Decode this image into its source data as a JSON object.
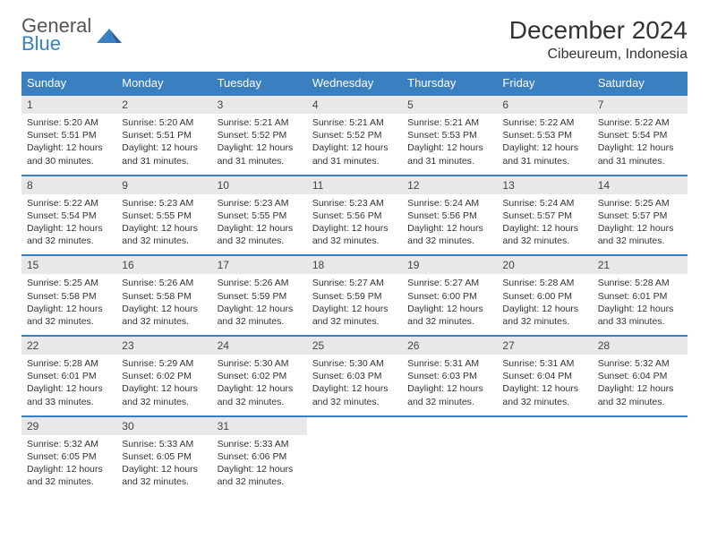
{
  "brand": {
    "line1": "General",
    "line2": "Blue",
    "icon_color": "#3a7fbf"
  },
  "header": {
    "title": "December 2024",
    "location": "Cibeureum, Indonesia"
  },
  "colors": {
    "header_bg": "#3a7fbf",
    "daynum_bg": "#e8e8e8",
    "border": "#3a7fbf",
    "text": "#333333"
  },
  "day_names": [
    "Sunday",
    "Monday",
    "Tuesday",
    "Wednesday",
    "Thursday",
    "Friday",
    "Saturday"
  ],
  "weeks": [
    [
      {
        "num": "1",
        "sunrise": "Sunrise: 5:20 AM",
        "sunset": "Sunset: 5:51 PM",
        "day1": "Daylight: 12 hours",
        "day2": "and 30 minutes."
      },
      {
        "num": "2",
        "sunrise": "Sunrise: 5:20 AM",
        "sunset": "Sunset: 5:51 PM",
        "day1": "Daylight: 12 hours",
        "day2": "and 31 minutes."
      },
      {
        "num": "3",
        "sunrise": "Sunrise: 5:21 AM",
        "sunset": "Sunset: 5:52 PM",
        "day1": "Daylight: 12 hours",
        "day2": "and 31 minutes."
      },
      {
        "num": "4",
        "sunrise": "Sunrise: 5:21 AM",
        "sunset": "Sunset: 5:52 PM",
        "day1": "Daylight: 12 hours",
        "day2": "and 31 minutes."
      },
      {
        "num": "5",
        "sunrise": "Sunrise: 5:21 AM",
        "sunset": "Sunset: 5:53 PM",
        "day1": "Daylight: 12 hours",
        "day2": "and 31 minutes."
      },
      {
        "num": "6",
        "sunrise": "Sunrise: 5:22 AM",
        "sunset": "Sunset: 5:53 PM",
        "day1": "Daylight: 12 hours",
        "day2": "and 31 minutes."
      },
      {
        "num": "7",
        "sunrise": "Sunrise: 5:22 AM",
        "sunset": "Sunset: 5:54 PM",
        "day1": "Daylight: 12 hours",
        "day2": "and 31 minutes."
      }
    ],
    [
      {
        "num": "8",
        "sunrise": "Sunrise: 5:22 AM",
        "sunset": "Sunset: 5:54 PM",
        "day1": "Daylight: 12 hours",
        "day2": "and 32 minutes."
      },
      {
        "num": "9",
        "sunrise": "Sunrise: 5:23 AM",
        "sunset": "Sunset: 5:55 PM",
        "day1": "Daylight: 12 hours",
        "day2": "and 32 minutes."
      },
      {
        "num": "10",
        "sunrise": "Sunrise: 5:23 AM",
        "sunset": "Sunset: 5:55 PM",
        "day1": "Daylight: 12 hours",
        "day2": "and 32 minutes."
      },
      {
        "num": "11",
        "sunrise": "Sunrise: 5:23 AM",
        "sunset": "Sunset: 5:56 PM",
        "day1": "Daylight: 12 hours",
        "day2": "and 32 minutes."
      },
      {
        "num": "12",
        "sunrise": "Sunrise: 5:24 AM",
        "sunset": "Sunset: 5:56 PM",
        "day1": "Daylight: 12 hours",
        "day2": "and 32 minutes."
      },
      {
        "num": "13",
        "sunrise": "Sunrise: 5:24 AM",
        "sunset": "Sunset: 5:57 PM",
        "day1": "Daylight: 12 hours",
        "day2": "and 32 minutes."
      },
      {
        "num": "14",
        "sunrise": "Sunrise: 5:25 AM",
        "sunset": "Sunset: 5:57 PM",
        "day1": "Daylight: 12 hours",
        "day2": "and 32 minutes."
      }
    ],
    [
      {
        "num": "15",
        "sunrise": "Sunrise: 5:25 AM",
        "sunset": "Sunset: 5:58 PM",
        "day1": "Daylight: 12 hours",
        "day2": "and 32 minutes."
      },
      {
        "num": "16",
        "sunrise": "Sunrise: 5:26 AM",
        "sunset": "Sunset: 5:58 PM",
        "day1": "Daylight: 12 hours",
        "day2": "and 32 minutes."
      },
      {
        "num": "17",
        "sunrise": "Sunrise: 5:26 AM",
        "sunset": "Sunset: 5:59 PM",
        "day1": "Daylight: 12 hours",
        "day2": "and 32 minutes."
      },
      {
        "num": "18",
        "sunrise": "Sunrise: 5:27 AM",
        "sunset": "Sunset: 5:59 PM",
        "day1": "Daylight: 12 hours",
        "day2": "and 32 minutes."
      },
      {
        "num": "19",
        "sunrise": "Sunrise: 5:27 AM",
        "sunset": "Sunset: 6:00 PM",
        "day1": "Daylight: 12 hours",
        "day2": "and 32 minutes."
      },
      {
        "num": "20",
        "sunrise": "Sunrise: 5:28 AM",
        "sunset": "Sunset: 6:00 PM",
        "day1": "Daylight: 12 hours",
        "day2": "and 32 minutes."
      },
      {
        "num": "21",
        "sunrise": "Sunrise: 5:28 AM",
        "sunset": "Sunset: 6:01 PM",
        "day1": "Daylight: 12 hours",
        "day2": "and 33 minutes."
      }
    ],
    [
      {
        "num": "22",
        "sunrise": "Sunrise: 5:28 AM",
        "sunset": "Sunset: 6:01 PM",
        "day1": "Daylight: 12 hours",
        "day2": "and 33 minutes."
      },
      {
        "num": "23",
        "sunrise": "Sunrise: 5:29 AM",
        "sunset": "Sunset: 6:02 PM",
        "day1": "Daylight: 12 hours",
        "day2": "and 32 minutes."
      },
      {
        "num": "24",
        "sunrise": "Sunrise: 5:30 AM",
        "sunset": "Sunset: 6:02 PM",
        "day1": "Daylight: 12 hours",
        "day2": "and 32 minutes."
      },
      {
        "num": "25",
        "sunrise": "Sunrise: 5:30 AM",
        "sunset": "Sunset: 6:03 PM",
        "day1": "Daylight: 12 hours",
        "day2": "and 32 minutes."
      },
      {
        "num": "26",
        "sunrise": "Sunrise: 5:31 AM",
        "sunset": "Sunset: 6:03 PM",
        "day1": "Daylight: 12 hours",
        "day2": "and 32 minutes."
      },
      {
        "num": "27",
        "sunrise": "Sunrise: 5:31 AM",
        "sunset": "Sunset: 6:04 PM",
        "day1": "Daylight: 12 hours",
        "day2": "and 32 minutes."
      },
      {
        "num": "28",
        "sunrise": "Sunrise: 5:32 AM",
        "sunset": "Sunset: 6:04 PM",
        "day1": "Daylight: 12 hours",
        "day2": "and 32 minutes."
      }
    ],
    [
      {
        "num": "29",
        "sunrise": "Sunrise: 5:32 AM",
        "sunset": "Sunset: 6:05 PM",
        "day1": "Daylight: 12 hours",
        "day2": "and 32 minutes."
      },
      {
        "num": "30",
        "sunrise": "Sunrise: 5:33 AM",
        "sunset": "Sunset: 6:05 PM",
        "day1": "Daylight: 12 hours",
        "day2": "and 32 minutes."
      },
      {
        "num": "31",
        "sunrise": "Sunrise: 5:33 AM",
        "sunset": "Sunset: 6:06 PM",
        "day1": "Daylight: 12 hours",
        "day2": "and 32 minutes."
      },
      null,
      null,
      null,
      null
    ]
  ]
}
